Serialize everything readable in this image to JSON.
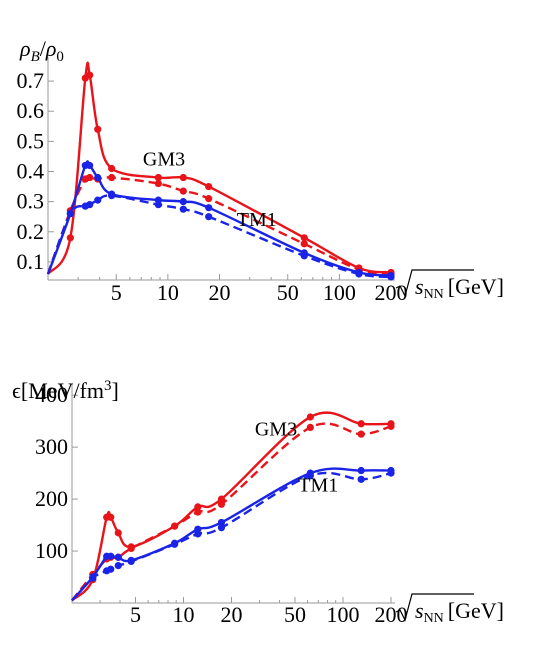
{
  "chart_data": [
    {
      "type": "line",
      "x_scale": "log",
      "xlabel": "√sNN [GeV]",
      "ylabel": "ρB/ρ0",
      "xlim": [
        2.0,
        200
      ],
      "ylim": [
        0.04,
        0.76
      ],
      "xticks": [
        {
          "value": 5,
          "label": "5"
        },
        {
          "value": 10,
          "label": "10"
        },
        {
          "value": 20,
          "label": "20"
        },
        {
          "value": 50,
          "label": "50"
        },
        {
          "value": 100,
          "label": "100"
        },
        {
          "value": 200,
          "label": "200"
        }
      ],
      "yticks": [
        {
          "value": 0.1,
          "label": "0.1"
        },
        {
          "value": 0.2,
          "label": "0.2"
        },
        {
          "value": 0.3,
          "label": "0.3"
        },
        {
          "value": 0.4,
          "label": "0.4"
        },
        {
          "value": 0.5,
          "label": "0.5"
        },
        {
          "value": 0.6,
          "label": "0.6"
        },
        {
          "value": 0.7,
          "label": "0.7"
        }
      ],
      "annotations": [
        {
          "text": "GM3",
          "x": 9.5,
          "y": 0.42
        },
        {
          "text": "TM1",
          "x": 33,
          "y": 0.22
        }
      ],
      "series": [
        {
          "color": "#e8141a",
          "dash": false,
          "x": [
            2.0,
            2.7,
            3.3,
            3.5,
            3.9,
            4.7,
            8.8,
            12.3,
            17.3,
            62.4,
            130,
            200
          ],
          "y": [
            0.06,
            0.18,
            0.71,
            0.72,
            0.54,
            0.41,
            0.38,
            0.38,
            0.35,
            0.18,
            0.08,
            0.065
          ]
        },
        {
          "color": "#e8141a",
          "dash": true,
          "x": [
            2.0,
            2.7,
            3.3,
            3.5,
            3.9,
            4.7,
            8.8,
            12.3,
            17.3,
            62.4,
            130,
            200
          ],
          "y": [
            0.06,
            0.27,
            0.375,
            0.38,
            0.375,
            0.38,
            0.36,
            0.335,
            0.31,
            0.16,
            0.075,
            0.06
          ]
        },
        {
          "color": "#1a24e6",
          "dash": false,
          "x": [
            2.0,
            2.7,
            3.3,
            3.5,
            3.9,
            4.7,
            8.8,
            12.3,
            17.3,
            62.4,
            130,
            200
          ],
          "y": [
            0.06,
            0.26,
            0.42,
            0.42,
            0.38,
            0.325,
            0.305,
            0.3,
            0.28,
            0.13,
            0.065,
            0.055
          ]
        },
        {
          "color": "#1a24e6",
          "dash": true,
          "x": [
            2.0,
            2.7,
            3.3,
            3.5,
            3.9,
            4.7,
            8.8,
            12.3,
            17.3,
            62.4,
            130,
            200
          ],
          "y": [
            0.06,
            0.26,
            0.285,
            0.29,
            0.305,
            0.32,
            0.29,
            0.275,
            0.25,
            0.12,
            0.06,
            0.05
          ]
        }
      ]
    },
    {
      "type": "line",
      "x_scale": "log",
      "xlabel": "√sNN [GeV]",
      "ylabel": "ϵ[MeV/fm3]",
      "xlim": [
        2.0,
        200
      ],
      "ylim": [
        0,
        410
      ],
      "xticks": [
        {
          "value": 5,
          "label": "5"
        },
        {
          "value": 10,
          "label": "10"
        },
        {
          "value": 20,
          "label": "20"
        },
        {
          "value": 50,
          "label": "50"
        },
        {
          "value": 100,
          "label": "100"
        },
        {
          "value": 200,
          "label": "200"
        }
      ],
      "yticks": [
        {
          "value": 100,
          "label": "100"
        },
        {
          "value": 200,
          "label": "200"
        },
        {
          "value": 300,
          "label": "300"
        },
        {
          "value": 400,
          "label": "400"
        }
      ],
      "annotations": [
        {
          "text": "GM3",
          "x": 38,
          "y": 322
        },
        {
          "text": "TM1",
          "x": 70,
          "y": 215
        }
      ],
      "series": [
        {
          "color": "#e8141a",
          "dash": false,
          "x": [
            2.0,
            2.7,
            3.3,
            3.5,
            3.9,
            4.7,
            8.8,
            12.3,
            17.3,
            62.4,
            130,
            200
          ],
          "y": [
            5,
            45,
            165,
            165,
            135,
            108,
            148,
            185,
            200,
            358,
            345,
            345
          ]
        },
        {
          "color": "#e8141a",
          "dash": true,
          "x": [
            2.0,
            2.7,
            3.3,
            3.5,
            3.9,
            4.7,
            8.8,
            12.3,
            17.3,
            62.4,
            130,
            200
          ],
          "y": [
            5,
            55,
            85,
            88,
            88,
            105,
            148,
            175,
            190,
            338,
            325,
            340
          ]
        },
        {
          "color": "#1a24e6",
          "dash": false,
          "x": [
            2.0,
            2.7,
            3.3,
            3.5,
            3.9,
            4.7,
            8.8,
            12.3,
            17.3,
            62.4,
            130,
            200
          ],
          "y": [
            5,
            50,
            90,
            90,
            88,
            82,
            115,
            142,
            155,
            250,
            255,
            255
          ]
        },
        {
          "color": "#1a24e6",
          "dash": true,
          "x": [
            2.0,
            2.7,
            3.3,
            3.5,
            3.9,
            4.7,
            8.8,
            12.3,
            17.3,
            62.4,
            130,
            200
          ],
          "y": [
            5,
            48,
            62,
            65,
            72,
            80,
            113,
            133,
            145,
            245,
            238,
            250
          ]
        }
      ]
    }
  ]
}
